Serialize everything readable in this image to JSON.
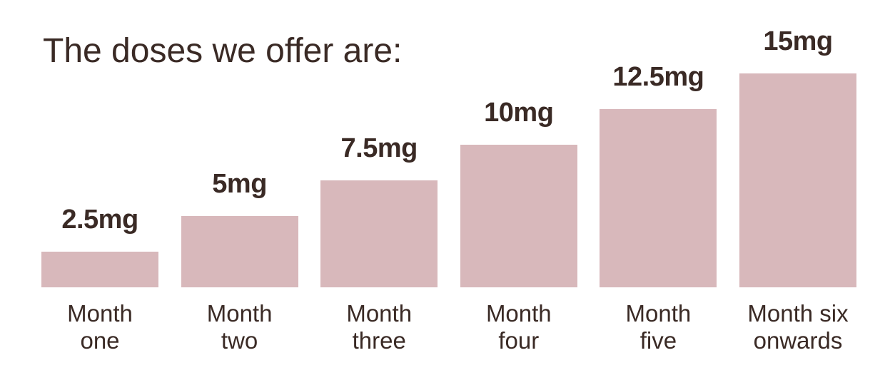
{
  "chart_data": {
    "type": "bar",
    "title": "The doses we offer are:",
    "categories": [
      "Month\none",
      "Month\ntwo",
      "Month\nthree",
      "Month\nfour",
      "Month\nfive",
      "Month six\nonwards"
    ],
    "values": [
      2.5,
      5,
      7.5,
      10,
      12.5,
      15
    ],
    "value_labels": [
      "2.5mg",
      "5mg",
      "7.5mg",
      "10mg",
      "12.5mg",
      "15mg"
    ],
    "color": "#d8b8bb"
  }
}
